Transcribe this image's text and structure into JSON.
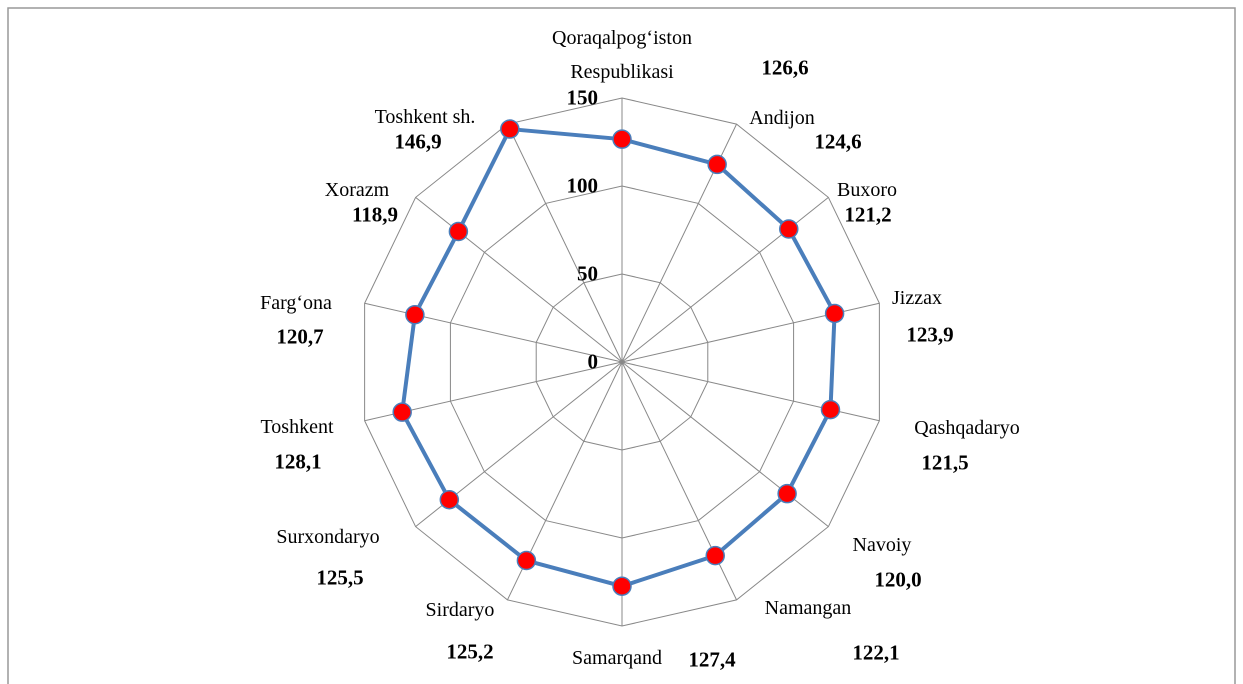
{
  "chart_data": {
    "type": "radar",
    "categories": [
      "Qoraqalpog‘iston Respublikasi",
      "Andijon",
      "Buxoro",
      "Jizzax",
      "Qashqadaryo",
      "Navoiy",
      "Namangan",
      "Samarqand",
      "Sirdaryo",
      "Surxondaryo",
      "Toshkent",
      "Farg‘ona",
      "Xorazm",
      "Toshkent sh."
    ],
    "values": [
      126.6,
      124.6,
      121.2,
      123.9,
      121.5,
      120.0,
      122.1,
      127.4,
      125.2,
      125.5,
      128.1,
      120.7,
      118.9,
      146.9
    ],
    "value_labels": [
      "126,6",
      "124,6",
      "121,2",
      "123,9",
      "121,5",
      "120,0",
      "122,1",
      "127,4",
      "125,2",
      "125,5",
      "128,1",
      "120,7",
      "118,9",
      "146,9"
    ],
    "color": "#4a7ebb",
    "marker_color": "#ff0000",
    "ylim": [
      0,
      150
    ],
    "yticks": [
      0,
      50,
      100,
      150
    ],
    "grid": true
  }
}
